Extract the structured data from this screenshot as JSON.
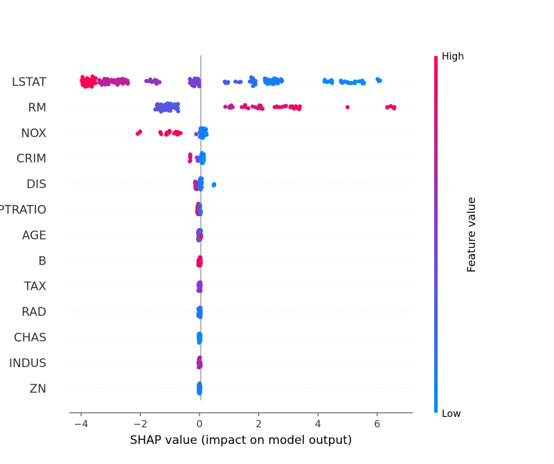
{
  "chart_data": {
    "type": "scatter",
    "subtype": "beeswarm",
    "xlabel": "SHAP value (impact on model output)",
    "xlim": [
      -4.4,
      7.2
    ],
    "x_ticks": [
      -4,
      -2,
      0,
      2,
      4,
      6
    ],
    "x_tick_labels": [
      "−4",
      "−2",
      "0",
      "2",
      "4",
      "6"
    ],
    "grid": "dotted horizontal row lines",
    "zero_line": 0,
    "colorbar": {
      "title": "Feature value",
      "high_label": "High",
      "low_label": "Low",
      "colors": {
        "low": "#008bfb",
        "mid": "#7b3fd6",
        "high": "#ff0052"
      }
    },
    "features": [
      {
        "name": "LSTAT",
        "groups": [
          {
            "x": [
              -4.0,
              -3.5
            ],
            "color": 1.0,
            "n": 60
          },
          {
            "x": [
              -3.4,
              -2.4
            ],
            "color": 0.72,
            "n": 52
          },
          {
            "x": [
              -1.8,
              -1.3
            ],
            "color": 0.6,
            "n": 14
          },
          {
            "x": [
              -0.35,
              0.0
            ],
            "color": 0.45,
            "n": 28
          },
          {
            "x": [
              0.8,
              1.4
            ],
            "color": 0.32,
            "n": 8
          },
          {
            "x": [
              1.7,
              1.9
            ],
            "color": 0.2,
            "n": 16
          },
          {
            "x": [
              2.2,
              2.8
            ],
            "color": 0.1,
            "n": 30
          },
          {
            "x": [
              4.2,
              5.6
            ],
            "color": 0.0,
            "n": 26
          },
          {
            "x": [
              6.0,
              6.1
            ],
            "color": 0.0,
            "n": 4
          }
        ]
      },
      {
        "name": "RM",
        "groups": [
          {
            "x": [
              -1.5,
              -0.7
            ],
            "color": 0.35,
            "n": 56
          },
          {
            "x": [
              0.8,
              1.2
            ],
            "color": 0.78,
            "n": 6
          },
          {
            "x": [
              1.4,
              2.2
            ],
            "color": 0.85,
            "n": 12
          },
          {
            "x": [
              2.5,
              3.4
            ],
            "color": 0.92,
            "n": 18
          },
          {
            "x": [
              5.0,
              5.0
            ],
            "color": 1.0,
            "n": 1
          },
          {
            "x": [
              6.3,
              6.7
            ],
            "color": 1.0,
            "n": 6
          }
        ]
      },
      {
        "name": "NOX",
        "groups": [
          {
            "x": [
              -2.1,
              -2.0
            ],
            "color": 1.0,
            "n": 3
          },
          {
            "x": [
              -1.4,
              -0.6
            ],
            "color": 0.95,
            "n": 18
          },
          {
            "x": [
              -0.15,
              0.2
            ],
            "color": 0.5,
            "n": 8
          },
          {
            "x": [
              0.0,
              0.25
            ],
            "color": 0.1,
            "n": 30
          }
        ]
      },
      {
        "name": "CRIM",
        "groups": [
          {
            "x": [
              -0.35,
              -0.3
            ],
            "color": 0.8,
            "n": 7
          },
          {
            "x": [
              -0.12,
              -0.05
            ],
            "color": 0.4,
            "n": 3
          },
          {
            "x": [
              0.05,
              0.15
            ],
            "color": 0.0,
            "n": 44
          }
        ]
      },
      {
        "name": "DIS",
        "groups": [
          {
            "x": [
              -0.15,
              -0.05
            ],
            "color": 0.65,
            "n": 16
          },
          {
            "x": [
              0.0,
              0.08
            ],
            "color": 0.1,
            "n": 26
          },
          {
            "x": [
              0.45,
              0.5
            ],
            "color": 0.0,
            "n": 4
          }
        ]
      },
      {
        "name": "PTRATIO",
        "groups": [
          {
            "x": [
              -0.08,
              0.0
            ],
            "color": 0.9,
            "n": 34
          },
          {
            "x": [
              0.0,
              0.05
            ],
            "color": 0.25,
            "n": 10
          }
        ]
      },
      {
        "name": "AGE",
        "groups": [
          {
            "x": [
              -0.05,
              0.0
            ],
            "color": 0.65,
            "n": 30
          },
          {
            "x": [
              0.0,
              0.05
            ],
            "color": 0.15,
            "n": 14
          },
          {
            "x": [
              0.05,
              0.1
            ],
            "color": 1.0,
            "n": 2
          }
        ]
      },
      {
        "name": "B",
        "groups": [
          {
            "x": [
              -0.04,
              0.04
            ],
            "color": 0.95,
            "n": 34
          }
        ]
      },
      {
        "name": "TAX",
        "groups": [
          {
            "x": [
              -0.04,
              0.04
            ],
            "color": 0.55,
            "n": 34
          }
        ]
      },
      {
        "name": "RAD",
        "groups": [
          {
            "x": [
              -0.04,
              0.04
            ],
            "color": 0.12,
            "n": 36
          }
        ]
      },
      {
        "name": "CHAS",
        "groups": [
          {
            "x": [
              -0.03,
              0.03
            ],
            "color": 0.0,
            "n": 40
          }
        ]
      },
      {
        "name": "INDUS",
        "groups": [
          {
            "x": [
              -0.04,
              0.04
            ],
            "color": 0.7,
            "n": 36
          }
        ]
      },
      {
        "name": "ZN",
        "groups": [
          {
            "x": [
              -0.03,
              0.03
            ],
            "color": 0.1,
            "n": 34
          }
        ]
      }
    ]
  }
}
